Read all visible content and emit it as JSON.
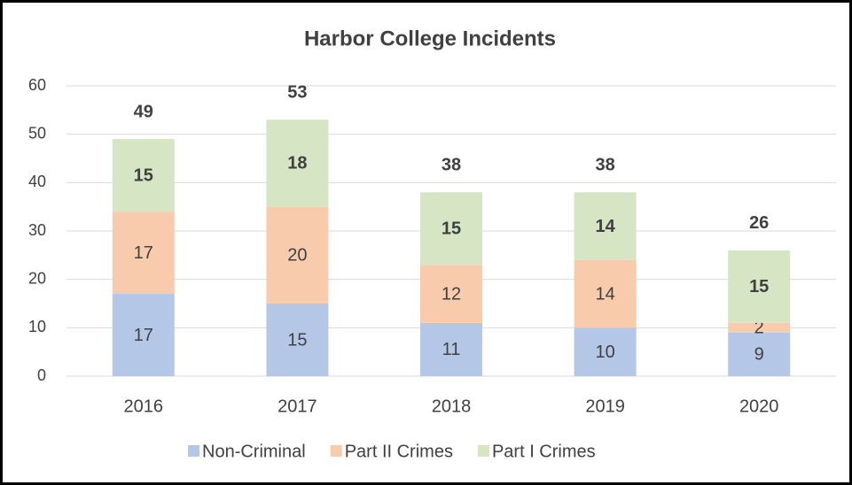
{
  "chart_data": {
    "type": "stacked-bar",
    "title": "Harbor College Incidents",
    "categories": [
      "2016",
      "2017",
      "2018",
      "2019",
      "2020"
    ],
    "series": [
      {
        "name": "Non-Criminal",
        "color": "#b4c7e7",
        "values": [
          17,
          15,
          11,
          10,
          9
        ]
      },
      {
        "name": "Part II Crimes",
        "color": "#f8cbad",
        "values": [
          17,
          20,
          12,
          14,
          2
        ]
      },
      {
        "name": "Part I Crimes",
        "color": "#d6e5c3",
        "values": [
          15,
          18,
          15,
          14,
          15
        ]
      }
    ],
    "totals": [
      49,
      53,
      38,
      38,
      26
    ],
    "ylim": [
      0,
      60
    ],
    "yticks": [
      0,
      10,
      20,
      30,
      40,
      50,
      60
    ],
    "grid": true,
    "legend": "bottom"
  }
}
